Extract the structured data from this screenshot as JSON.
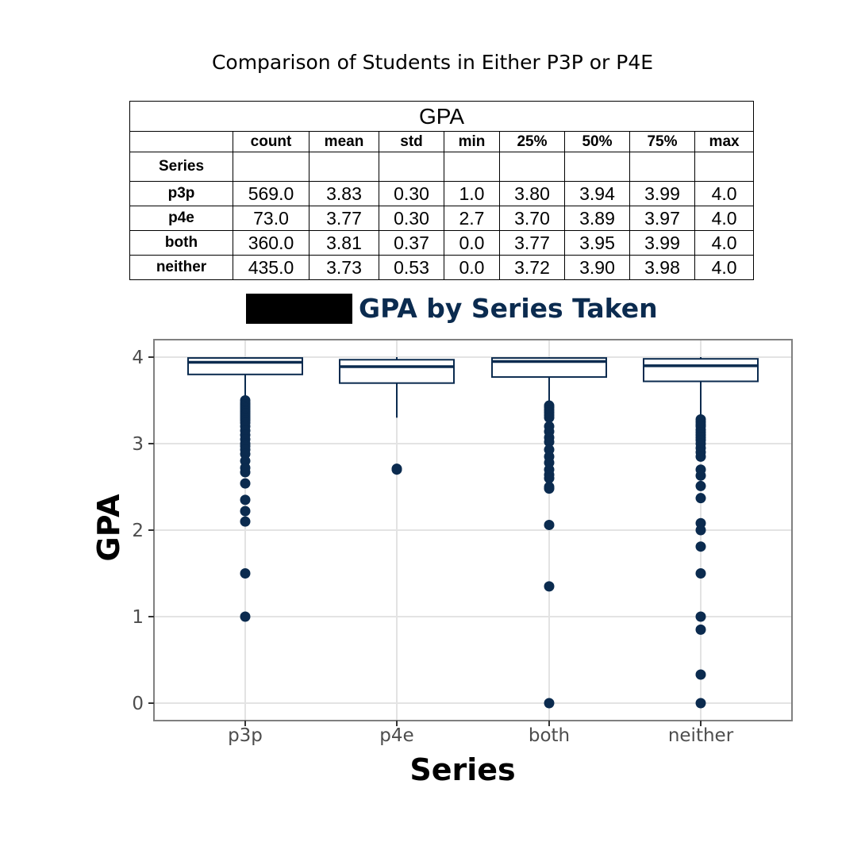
{
  "page_title": "Comparison of Students in Either P3P or P4E",
  "table": {
    "group_header": "GPA",
    "columns": [
      "count",
      "mean",
      "std",
      "min",
      "25%",
      "50%",
      "75%",
      "max"
    ],
    "index_name": "Series",
    "rows": [
      {
        "label": "p3p",
        "values": [
          "569.0",
          "3.83",
          "0.30",
          "1.0",
          "3.80",
          "3.94",
          "3.99",
          "4.0"
        ]
      },
      {
        "label": "p4e",
        "values": [
          "73.0",
          "3.77",
          "0.30",
          "2.7",
          "3.70",
          "3.89",
          "3.97",
          "4.0"
        ]
      },
      {
        "label": "both",
        "values": [
          "360.0",
          "3.81",
          "0.37",
          "0.0",
          "3.77",
          "3.95",
          "3.99",
          "4.0"
        ]
      },
      {
        "label": "neither",
        "values": [
          "435.0",
          "3.73",
          "0.53",
          "0.0",
          "3.72",
          "3.90",
          "3.98",
          "4.0"
        ]
      }
    ]
  },
  "chart_data": {
    "type": "box",
    "title": "GPA by Series Taken",
    "title_redacted_prefix": true,
    "xlabel": "Series",
    "ylabel": "GPA",
    "categories": [
      "p3p",
      "p4e",
      "both",
      "neither"
    ],
    "ylim": [
      -0.2,
      4.1
    ],
    "yticks": [
      0,
      1,
      2,
      3,
      4
    ],
    "grid": true,
    "color": "#0b2b4f",
    "boxes": [
      {
        "category": "p3p",
        "whisker_low": 3.51,
        "q1": 3.8,
        "median": 3.94,
        "q3": 3.99,
        "whisker_high": 4.0,
        "outliers": [
          3.5,
          3.47,
          3.45,
          3.43,
          3.41,
          3.39,
          3.37,
          3.35,
          3.33,
          3.31,
          3.29,
          3.27,
          3.24,
          3.2,
          3.15,
          3.1,
          3.05,
          3.0,
          2.97,
          2.93,
          2.88,
          2.8,
          2.72,
          2.67,
          2.54,
          2.35,
          2.22,
          2.1,
          1.5,
          1.0
        ]
      },
      {
        "category": "p4e",
        "whisker_low": 3.3,
        "q1": 3.7,
        "median": 3.89,
        "q3": 3.97,
        "whisker_high": 4.0,
        "outliers": [
          2.71,
          2.7
        ]
      },
      {
        "category": "both",
        "whisker_low": 3.46,
        "q1": 3.77,
        "median": 3.95,
        "q3": 3.99,
        "whisker_high": 4.0,
        "outliers": [
          3.44,
          3.42,
          3.39,
          3.36,
          3.33,
          3.3,
          3.2,
          3.14,
          3.07,
          3.02,
          2.93,
          2.85,
          2.78,
          2.7,
          2.64,
          2.6,
          2.5,
          2.48,
          2.06,
          1.35,
          0.0
        ]
      },
      {
        "category": "neither",
        "whisker_low": 3.3,
        "q1": 3.72,
        "median": 3.9,
        "q3": 3.98,
        "whisker_high": 4.0,
        "outliers": [
          3.28,
          3.25,
          3.22,
          3.2,
          3.16,
          3.13,
          3.1,
          3.07,
          3.04,
          3.0,
          2.95,
          2.9,
          2.85,
          2.7,
          2.63,
          2.51,
          2.37,
          2.08,
          2.0,
          1.81,
          1.5,
          1.0,
          0.85,
          0.33,
          0.0
        ]
      }
    ]
  }
}
